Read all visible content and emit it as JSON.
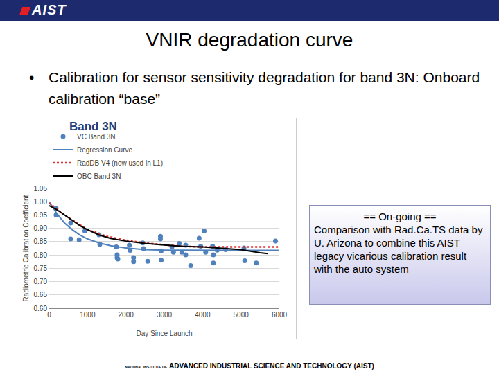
{
  "slide": {
    "logo": "AIST",
    "title": "VNIR degradation curve",
    "bullet": "Calibration for sensor sensitivity degradation for band 3N: Onboard calibration “base”",
    "note": {
      "heading": "== On-going ==",
      "text": "Comparison with Rad.Ca.TS data by U. Arizona to combine this AIST legacy vicarious calibration result with the auto system"
    },
    "footer": {
      "prefix": "NATIONAL INSTITUTE OF",
      "text": "ADVANCED INDUSTRIAL SCIENCE AND TECHNOLOGY (AIST)"
    }
  },
  "chart_data": {
    "type": "line",
    "title": "Band 3N",
    "x_label": "Day Since Launch",
    "y_label": "Radiometric Calibration Coefficient",
    "xlim": [
      0,
      6000
    ],
    "xticks": [
      0,
      1000,
      2000,
      3000,
      4000,
      5000,
      6000
    ],
    "ylim": [
      0.6,
      1.05
    ],
    "yticks": [
      {
        "value": 0.6,
        "label": "0.60"
      },
      0.65,
      {
        "value": 0.7,
        "label": "0.70"
      },
      0.75,
      {
        "value": 0.8,
        "label": "0.80"
      },
      0.85,
      {
        "value": 0.9,
        "label": "0.90"
      },
      0.95,
      {
        "value": 1,
        "label": "1.00"
      },
      1.05
    ],
    "grid": true,
    "legend": "top",
    "series": [
      {
        "name": "VC Band 3N",
        "type": "scatter",
        "marker": "circle",
        "color": "#4f81bd",
        "x": [
          180,
          180,
          560,
          930,
          560,
          780,
          1300,
          1320,
          1750,
          1770,
          1770,
          1790,
          2090,
          2110,
          2200,
          2200,
          2440,
          2460,
          2570,
          2900,
          2900,
          2920,
          2920,
          3200,
          3240,
          3390,
          3460,
          3560,
          3560,
          3690,
          3910,
          3950,
          4040,
          4080,
          4260,
          4280,
          4280,
          4380,
          4600,
          5080,
          5100,
          5400,
          5900
        ],
        "values": [
          0.975,
          0.95,
          0.92,
          0.89,
          0.86,
          0.857,
          0.876,
          0.84,
          0.83,
          0.79,
          0.8,
          0.785,
          0.837,
          0.817,
          0.79,
          0.775,
          0.845,
          0.824,
          0.776,
          0.87,
          0.86,
          0.815,
          0.78,
          0.83,
          0.81,
          0.843,
          0.81,
          0.837,
          0.8,
          0.76,
          0.863,
          0.833,
          0.89,
          0.81,
          0.833,
          0.8,
          0.77,
          0.818,
          0.82,
          0.826,
          0.778,
          0.77,
          0.852
        ]
      },
      {
        "name": "Regression Curve",
        "type": "line",
        "line_style": "solid",
        "color": "#4f81bd",
        "x": [
          0,
          200,
          400,
          600,
          800,
          1000,
          1300,
          1600,
          2000,
          2500,
          3000,
          4000,
          5000,
          6000
        ],
        "values": [
          1.0,
          0.955,
          0.92,
          0.895,
          0.875,
          0.86,
          0.845,
          0.835,
          0.826,
          0.82,
          0.818,
          0.817,
          0.817,
          0.817
        ]
      },
      {
        "name": "RadDB V4 (now used in L1)",
        "type": "line",
        "line_style": "dotted",
        "color": "#e03030",
        "x": [
          0,
          500,
          1000,
          1500,
          2000,
          2500,
          3000,
          3500,
          4000,
          5000,
          6000
        ],
        "values": [
          0.995,
          0.94,
          0.895,
          0.87,
          0.855,
          0.845,
          0.838,
          0.832,
          0.83,
          0.83,
          0.83
        ]
      },
      {
        "name": "OBC Band 3N",
        "type": "line",
        "line_style": "solid",
        "color": "#000000",
        "x": [
          0,
          200,
          500,
          800,
          1000,
          1300,
          1600,
          2000,
          2500,
          3000,
          3500,
          4000,
          4500,
          5000,
          5500,
          5700
        ],
        "values": [
          0.985,
          0.97,
          0.94,
          0.91,
          0.895,
          0.875,
          0.862,
          0.852,
          0.843,
          0.838,
          0.832,
          0.83,
          0.825,
          0.82,
          0.808,
          0.805
        ]
      }
    ]
  }
}
